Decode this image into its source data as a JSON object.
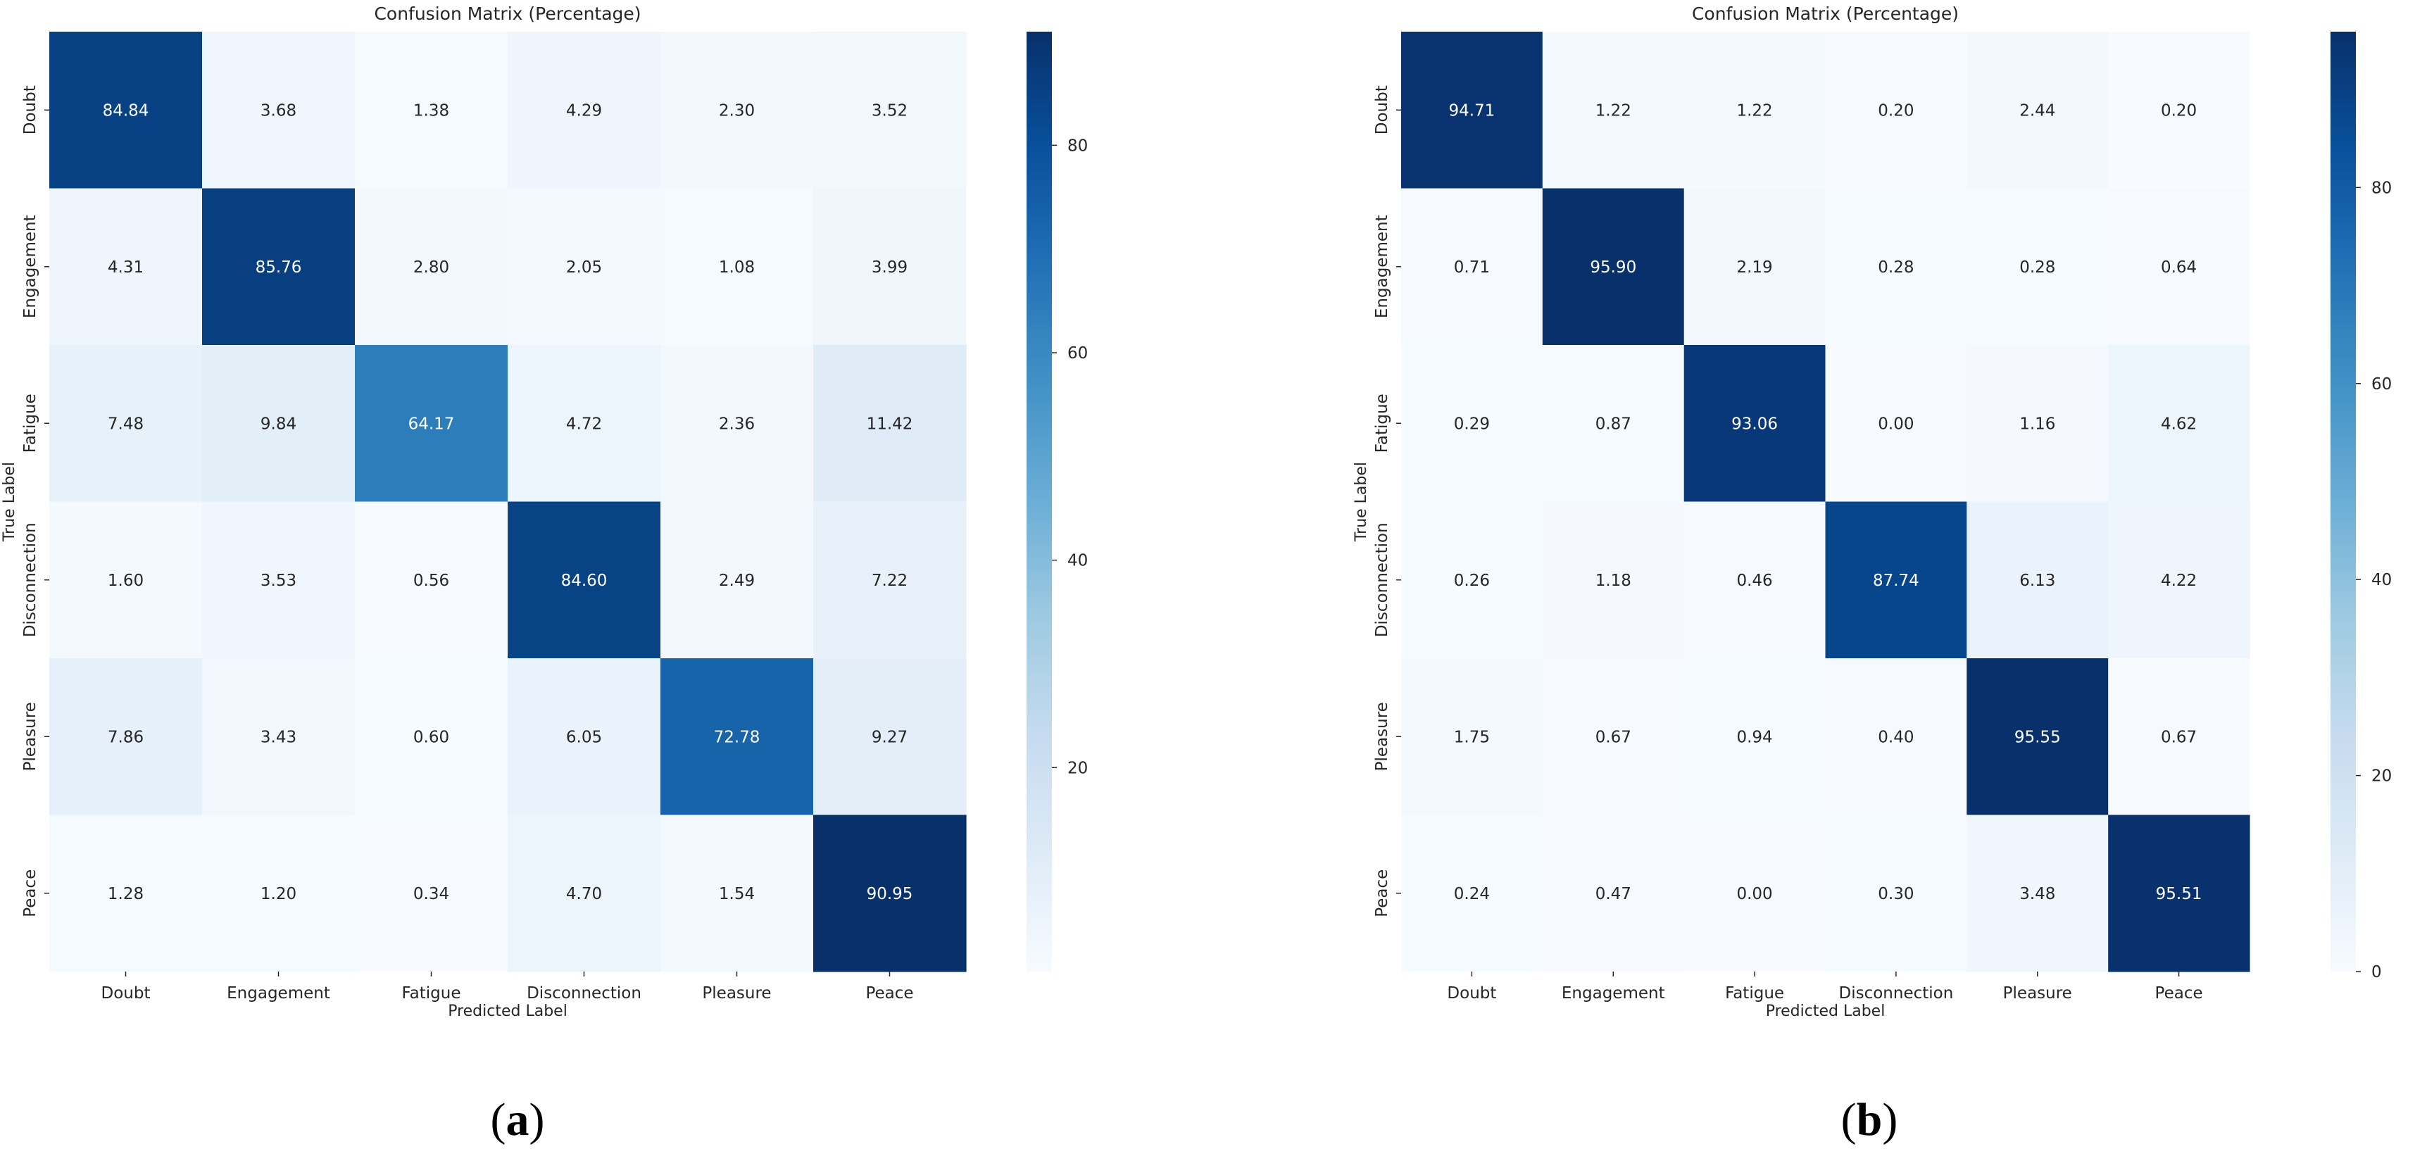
{
  "chart_data": [
    {
      "type": "heatmap",
      "title": "Confusion Matrix (Percentage)",
      "xlabel": "Predicted Label",
      "ylabel": "True Label",
      "panel_label": "a",
      "x_categories": [
        "Doubt",
        "Engagement",
        "Fatigue",
        "Disconnection",
        "Pleasure",
        "Peace"
      ],
      "y_categories": [
        "Doubt",
        "Engagement",
        "Fatigue",
        "Disconnection",
        "Pleasure",
        "Peace"
      ],
      "values": [
        [
          84.84,
          3.68,
          1.38,
          4.29,
          2.3,
          3.52
        ],
        [
          4.31,
          85.76,
          2.8,
          2.05,
          1.08,
          3.99
        ],
        [
          7.48,
          9.84,
          64.17,
          4.72,
          2.36,
          11.42
        ],
        [
          1.6,
          3.53,
          0.56,
          84.6,
          2.49,
          7.22
        ],
        [
          7.86,
          3.43,
          0.6,
          6.05,
          72.78,
          9.27
        ],
        [
          1.28,
          1.2,
          0.34,
          4.7,
          1.54,
          90.95
        ]
      ],
      "labels": [
        [
          "84.84",
          "3.68",
          "1.38",
          "4.29",
          "2.30",
          "3.52"
        ],
        [
          "4.31",
          "85.76",
          "2.80",
          "2.05",
          "1.08",
          "3.99"
        ],
        [
          "7.48",
          "9.84",
          "64.17",
          "4.72",
          "2.36",
          "11.42"
        ],
        [
          "1.60",
          "3.53",
          "0.56",
          "84.60",
          "2.49",
          "7.22"
        ],
        [
          "7.86",
          "3.43",
          "0.60",
          "6.05",
          "72.78",
          "9.27"
        ],
        [
          "1.28",
          "1.20",
          "0.34",
          "4.70",
          "1.54",
          "90.95"
        ]
      ],
      "colormap": "Blues",
      "vmin": 0.34,
      "vmax": 90.95,
      "colorbar_ticks": [
        20,
        40,
        60,
        80
      ]
    },
    {
      "type": "heatmap",
      "title": "Confusion Matrix (Percentage)",
      "xlabel": "Predicted Label",
      "ylabel": "True Label",
      "panel_label": "b",
      "x_categories": [
        "Doubt",
        "Engagement",
        "Fatigue",
        "Disconnection",
        "Pleasure",
        "Peace"
      ],
      "y_categories": [
        "Doubt",
        "Engagement",
        "Fatigue",
        "Disconnection",
        "Pleasure",
        "Peace"
      ],
      "values": [
        [
          94.71,
          1.22,
          1.22,
          0.2,
          2.44,
          0.2
        ],
        [
          0.71,
          95.9,
          2.19,
          0.28,
          0.28,
          0.64
        ],
        [
          0.29,
          0.87,
          93.06,
          0.0,
          1.16,
          4.62
        ],
        [
          0.26,
          1.18,
          0.46,
          87.74,
          6.13,
          4.22
        ],
        [
          1.75,
          0.67,
          0.94,
          0.4,
          95.55,
          0.67
        ],
        [
          0.24,
          0.47,
          0.0,
          0.3,
          3.48,
          95.51
        ]
      ],
      "labels": [
        [
          "94.71",
          "1.22",
          "1.22",
          "0.20",
          "2.44",
          "0.20"
        ],
        [
          "0.71",
          "95.90",
          "2.19",
          "0.28",
          "0.28",
          "0.64"
        ],
        [
          "0.29",
          "0.87",
          "93.06",
          "0.00",
          "1.16",
          "4.62"
        ],
        [
          "0.26",
          "1.18",
          "0.46",
          "87.74",
          "6.13",
          "4.22"
        ],
        [
          "1.75",
          "0.67",
          "0.94",
          "0.40",
          "95.55",
          "0.67"
        ],
        [
          "0.24",
          "0.47",
          "0.00",
          "0.30",
          "3.48",
          "95.51"
        ]
      ],
      "colormap": "Blues",
      "vmin": 0.0,
      "vmax": 95.9,
      "colorbar_ticks": [
        0,
        20,
        40,
        60,
        80
      ]
    }
  ]
}
